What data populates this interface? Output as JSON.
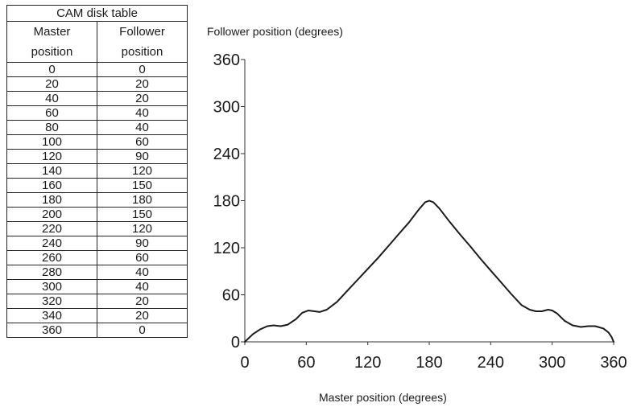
{
  "table": {
    "title": "CAM disk table",
    "col1_line1": "Master",
    "col1_line2": "position",
    "col2_line1": "Follower",
    "col2_line2": "position",
    "rows": [
      [
        "0",
        "0"
      ],
      [
        "20",
        "20"
      ],
      [
        "40",
        "20"
      ],
      [
        "60",
        "40"
      ],
      [
        "80",
        "40"
      ],
      [
        "100",
        "60"
      ],
      [
        "120",
        "90"
      ],
      [
        "140",
        "120"
      ],
      [
        "160",
        "150"
      ],
      [
        "180",
        "180"
      ],
      [
        "200",
        "150"
      ],
      [
        "220",
        "120"
      ],
      [
        "240",
        "90"
      ],
      [
        "260",
        "60"
      ],
      [
        "280",
        "40"
      ],
      [
        "300",
        "40"
      ],
      [
        "320",
        "20"
      ],
      [
        "340",
        "20"
      ],
      [
        "360",
        "0"
      ]
    ]
  },
  "chart_data": {
    "type": "line",
    "title": "",
    "xlabel": "Master position (degrees)",
    "ylabel": "Follower position (degrees)",
    "xlim": [
      0,
      360
    ],
    "ylim": [
      0,
      360
    ],
    "x_ticks": [
      0,
      60,
      120,
      180,
      240,
      300,
      360
    ],
    "y_ticks": [
      0,
      60,
      120,
      180,
      240,
      300,
      360
    ],
    "grid": false,
    "curve_color": "#1a1a1a",
    "series": [
      {
        "x": [
          0,
          8,
          15,
          22,
          28,
          35,
          42,
          50,
          56,
          62,
          68,
          73,
          80,
          90,
          100,
          110,
          120,
          130,
          140,
          150,
          160,
          170,
          176,
          180,
          184,
          190,
          200,
          210,
          220,
          230,
          240,
          250,
          260,
          270,
          278,
          284,
          290,
          296,
          300,
          305,
          312,
          320,
          328,
          335,
          342,
          350,
          355,
          358,
          360
        ],
        "y": [
          0,
          10,
          16,
          20,
          21,
          20,
          22,
          29,
          37,
          40,
          39,
          38,
          41,
          51,
          65,
          79,
          93,
          107,
          122,
          137,
          152,
          169,
          178,
          180,
          178,
          170,
          153,
          137,
          122,
          106,
          91,
          76,
          61,
          47,
          41,
          39,
          39,
          41,
          40,
          36,
          27,
          21,
          19,
          20,
          20,
          17,
          12,
          6,
          0
        ]
      }
    ]
  }
}
